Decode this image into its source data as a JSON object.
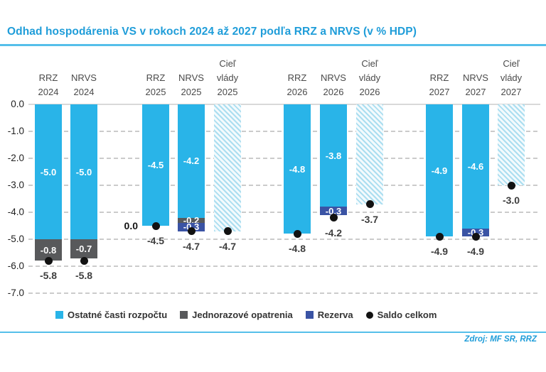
{
  "title": "Odhad hospodárenia VS v rokoch 2024 až 2027 podľa RRZ a NRVS (v % HDP)",
  "source_note": "Zdroj: MF SR, RRZ",
  "colors": {
    "title_blue": "#1F9DD9",
    "rule_blue": "#55BFEA",
    "grid": "#CBCBCB",
    "zero_line": "#D9D9D9",
    "hatch_stripe": "#ABDEF0",
    "hatch_bg": "#F3FAFD"
  },
  "chart_data": {
    "type": "bar",
    "stacked": true,
    "title": "Odhad hospodárenia VS v rokoch 2024 až 2027 podľa RRZ a NRVS (v % HDP)",
    "ylabel": "% HDP",
    "ylim": [
      -7.0,
      0.0
    ],
    "grid": "dashed-horizontal",
    "legend_position": "bottom",
    "yticks": [
      "0.0",
      "-1.0",
      "-2.0",
      "-3.0",
      "-4.0",
      "-5.0",
      "-6.0",
      "-7.0"
    ],
    "series": [
      {
        "id": "ostatne",
        "label": "Ostatné časti rozpočtu",
        "color": "#29B4E8",
        "marker": "square"
      },
      {
        "id": "jednorazove",
        "label": "Jednorazové opatrenia",
        "color": "#58595B",
        "marker": "square"
      },
      {
        "id": "rezerva",
        "label": "Rezerva",
        "color": "#3A53A4",
        "marker": "square"
      },
      {
        "id": "saldo",
        "label": "Saldo celkom",
        "color": "#121212",
        "marker": "dot"
      }
    ],
    "bars": [
      {
        "id": "rrz-2024",
        "header": [
          "RRZ",
          "2024"
        ],
        "segments": [
          {
            "series": "ostatne",
            "value": -5.0,
            "label": "-5.0"
          },
          {
            "series": "jednorazove",
            "value": -0.8,
            "label": "-0.8"
          }
        ],
        "saldo": -5.8,
        "saldo_label": "-5.8"
      },
      {
        "id": "nrvs-2024",
        "header": [
          "NRVS",
          "2024"
        ],
        "segments": [
          {
            "series": "ostatne",
            "value": -5.0,
            "label": "-5.0"
          },
          {
            "series": "jednorazove",
            "value": -0.7,
            "label": "-0.7"
          }
        ],
        "saldo": -5.8,
        "saldo_label": "-5.8"
      },
      {
        "id": "rrz-2025",
        "header": [
          "RRZ",
          "2025"
        ],
        "segments": [
          {
            "series": "ostatne",
            "value": -4.5,
            "label": "-4.5"
          },
          {
            "series": "jednorazove",
            "value": 0.0,
            "label": "0.0",
            "label_position": "outside-left"
          }
        ],
        "saldo": -4.5,
        "saldo_label": "-4.5"
      },
      {
        "id": "nrvs-2025",
        "header": [
          "NRVS",
          "2025"
        ],
        "segments": [
          {
            "series": "ostatne",
            "value": -4.2,
            "label": "-4.2"
          },
          {
            "series": "jednorazove",
            "value": -0.2,
            "label": "-0.2"
          },
          {
            "series": "rezerva",
            "value": -0.3,
            "label": "-0.3"
          }
        ],
        "saldo": -4.7,
        "saldo_label": "-4.7"
      },
      {
        "id": "ciel-vlady-2025",
        "header": [
          "Cieľ",
          "vlády",
          "2025"
        ],
        "kind": "target",
        "value": -4.7,
        "saldo": -4.7,
        "saldo_label": "-4.7"
      },
      {
        "id": "rrz-2026",
        "header": [
          "RRZ",
          "2026"
        ],
        "segments": [
          {
            "series": "ostatne",
            "value": -4.8,
            "label": "-4.8"
          }
        ],
        "saldo": -4.8,
        "saldo_label": "-4.8"
      },
      {
        "id": "nrvs-2026",
        "header": [
          "NRVS",
          "2026"
        ],
        "segments": [
          {
            "series": "ostatne",
            "value": -3.8,
            "label": "-3.8"
          },
          {
            "series": "rezerva",
            "value": -0.3,
            "label": "-0.3"
          }
        ],
        "saldo": -4.2,
        "saldo_label": "-4.2"
      },
      {
        "id": "ciel-vlady-2026",
        "header": [
          "Cieľ",
          "vlády",
          "2026"
        ],
        "kind": "target",
        "value": -3.7,
        "saldo": -3.7,
        "saldo_label": "-3.7"
      },
      {
        "id": "rrz-2027",
        "header": [
          "RRZ",
          "2027"
        ],
        "segments": [
          {
            "series": "ostatne",
            "value": -4.9,
            "label": "-4.9"
          }
        ],
        "saldo": -4.9,
        "saldo_label": "-4.9"
      },
      {
        "id": "nrvs-2027",
        "header": [
          "NRVS",
          "2027"
        ],
        "segments": [
          {
            "series": "ostatne",
            "value": -4.6,
            "label": "-4.6"
          },
          {
            "series": "rezerva",
            "value": -0.3,
            "label": "-0.3"
          }
        ],
        "saldo": -4.9,
        "saldo_label": "-4.9"
      },
      {
        "id": "ciel-vlady-2027",
        "header": [
          "Cieľ",
          "vlády",
          "2027"
        ],
        "kind": "target",
        "value": -3.0,
        "saldo": -3.0,
        "saldo_label": "-3.0"
      }
    ]
  }
}
